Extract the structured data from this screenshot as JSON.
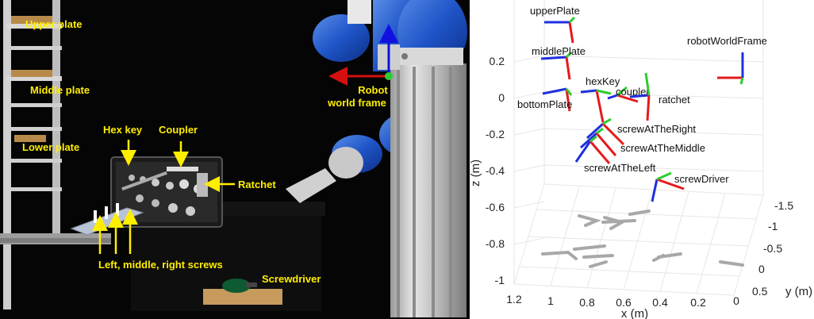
{
  "photo": {
    "labels": {
      "upper_plate": "Upper plate",
      "middle_plate": "Middle plate",
      "lower_plate": "Lower plate",
      "hex_key": "Hex key",
      "coupler": "Coupler",
      "ratchet": "Ratchet",
      "robot_line1": "Robot",
      "robot_line2": "world frame",
      "screws": "Left, middle, right screws",
      "screwdriver": "Screwdriver"
    }
  },
  "plot": {
    "z_ticks": [
      "0.2",
      "0",
      "-0.2",
      "-0.4",
      "-0.6",
      "-0.8",
      "-1"
    ],
    "x_ticks": [
      "1.2",
      "1",
      "0.8",
      "0.6",
      "0.4",
      "0.2",
      "0"
    ],
    "y_ticks": [
      "-1.5",
      "-1",
      "-0.5",
      "0",
      "0.5"
    ],
    "zlabel": "z (m)",
    "xlabel": "x (m)",
    "ylabel": "y (m)",
    "frames": {
      "upperPlate": "upperPlate",
      "middlePlate": "middlePlate",
      "bottomPlate": "bottomPlate",
      "hexKey": "hexKey",
      "coupler": "coupler",
      "ratchet": "ratchet",
      "robotWorldFrame": "robotWorldFrame",
      "screwAtTheRight": "screwAtTheRight",
      "screwAtTheMiddle": "screwAtTheMiddle",
      "screwAtTheLeft": "screwAtTheLeft",
      "screwDriver": "screwDriver"
    }
  },
  "colors": {
    "label_yellow": "#ffee00",
    "axis_red": "#e41a1c",
    "axis_green": "#2ecc2e",
    "axis_blue": "#1f2fe0",
    "shadow_gray": "#a8a8a8"
  }
}
